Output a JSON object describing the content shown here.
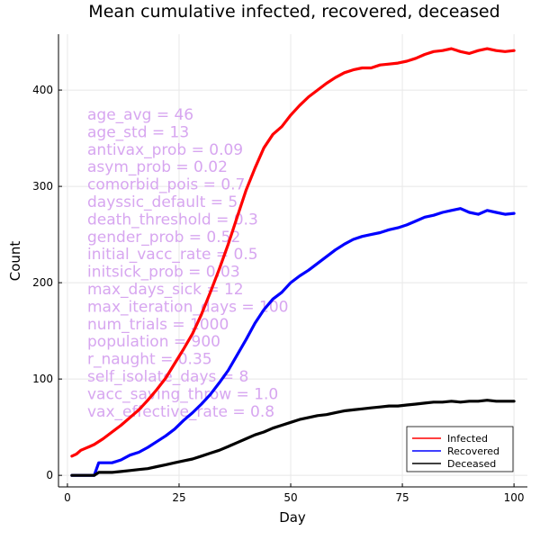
{
  "chart_data": {
    "type": "line",
    "title": "Mean cumulative infected, recovered, deceased",
    "xlabel": "Day",
    "ylabel": "Count",
    "xlim": [
      -2,
      103
    ],
    "ylim": [
      -12,
      458
    ],
    "xticks": [
      0,
      25,
      50,
      75,
      100
    ],
    "yticks": [
      0,
      100,
      200,
      300,
      400
    ],
    "grid": true,
    "legend_position": "bottom-right",
    "annotations": [
      "age_avg = 46",
      "age_std = 13",
      "antivax_prob = 0.09",
      "asym_prob = 0.02",
      "comorbid_pois = 0.7",
      "dayssic_default = 5",
      "death_threshold = 0.3",
      "gender_prob = 0.52",
      "initial_vacc_rate = 0.5",
      "initsick_prob = 0.03",
      "max_days_sick = 12",
      "max_iteration_days = 100",
      "num_trials = 1000",
      "population = 900",
      "r_naught = 0.35",
      "self_isolate_days = 8",
      "vacc_saving_throw = 1.0",
      "vax_effective_rate = 0.8"
    ],
    "series": [
      {
        "name": "Infected",
        "color": "#ff0000",
        "x": [
          1,
          2,
          3,
          4,
          5,
          6,
          8,
          10,
          12,
          14,
          16,
          18,
          20,
          22,
          24,
          26,
          28,
          30,
          32,
          34,
          36,
          38,
          40,
          42,
          44,
          46,
          48,
          50,
          52,
          54,
          56,
          58,
          60,
          62,
          64,
          66,
          68,
          70,
          72,
          74,
          76,
          78,
          80,
          82,
          84,
          86,
          88,
          90,
          92,
          94,
          96,
          98,
          100
        ],
        "y": [
          20,
          22,
          26,
          28,
          30,
          32,
          38,
          45,
          52,
          60,
          68,
          78,
          89,
          101,
          116,
          131,
          147,
          167,
          190,
          214,
          240,
          268,
          296,
          319,
          340,
          354,
          362,
          374,
          384,
          393,
          400,
          407,
          413,
          418,
          421,
          423,
          423,
          426,
          427,
          428,
          430,
          433,
          437,
          440,
          441,
          443,
          440,
          438,
          441,
          443,
          441,
          440,
          441
        ]
      },
      {
        "name": "Recovered",
        "color": "#0000ff",
        "x": [
          1,
          2,
          3,
          4,
          5,
          6,
          7,
          8,
          10,
          12,
          14,
          16,
          18,
          20,
          22,
          24,
          26,
          28,
          30,
          32,
          34,
          36,
          38,
          40,
          42,
          44,
          46,
          48,
          50,
          52,
          54,
          56,
          58,
          60,
          62,
          64,
          66,
          68,
          70,
          72,
          74,
          76,
          78,
          80,
          82,
          84,
          86,
          88,
          90,
          92,
          94,
          96,
          98,
          100
        ],
        "y": [
          0,
          0,
          0,
          0,
          0,
          0,
          13,
          13,
          13,
          16,
          21,
          24,
          29,
          35,
          41,
          48,
          57,
          65,
          74,
          84,
          96,
          109,
          125,
          141,
          158,
          172,
          183,
          190,
          200,
          207,
          213,
          220,
          227,
          234,
          240,
          245,
          248,
          250,
          252,
          255,
          257,
          260,
          264,
          268,
          270,
          273,
          275,
          277,
          273,
          271,
          275,
          273,
          271,
          272
        ]
      },
      {
        "name": "Deceased",
        "color": "#000000",
        "x": [
          1,
          2,
          3,
          4,
          5,
          6,
          7,
          8,
          10,
          12,
          14,
          16,
          18,
          20,
          22,
          24,
          26,
          28,
          30,
          32,
          34,
          36,
          38,
          40,
          42,
          44,
          46,
          48,
          50,
          52,
          54,
          56,
          58,
          60,
          62,
          64,
          66,
          68,
          70,
          72,
          74,
          76,
          78,
          80,
          82,
          84,
          86,
          88,
          90,
          92,
          94,
          96,
          98,
          100
        ],
        "y": [
          0,
          0,
          0,
          0,
          0,
          0,
          3,
          3,
          3,
          4,
          5,
          6,
          7,
          9,
          11,
          13,
          15,
          17,
          20,
          23,
          26,
          30,
          34,
          38,
          42,
          45,
          49,
          52,
          55,
          58,
          60,
          62,
          63,
          65,
          67,
          68,
          69,
          70,
          71,
          72,
          72,
          73,
          74,
          75,
          76,
          76,
          77,
          76,
          77,
          77,
          78,
          77,
          77,
          77
        ]
      }
    ]
  }
}
